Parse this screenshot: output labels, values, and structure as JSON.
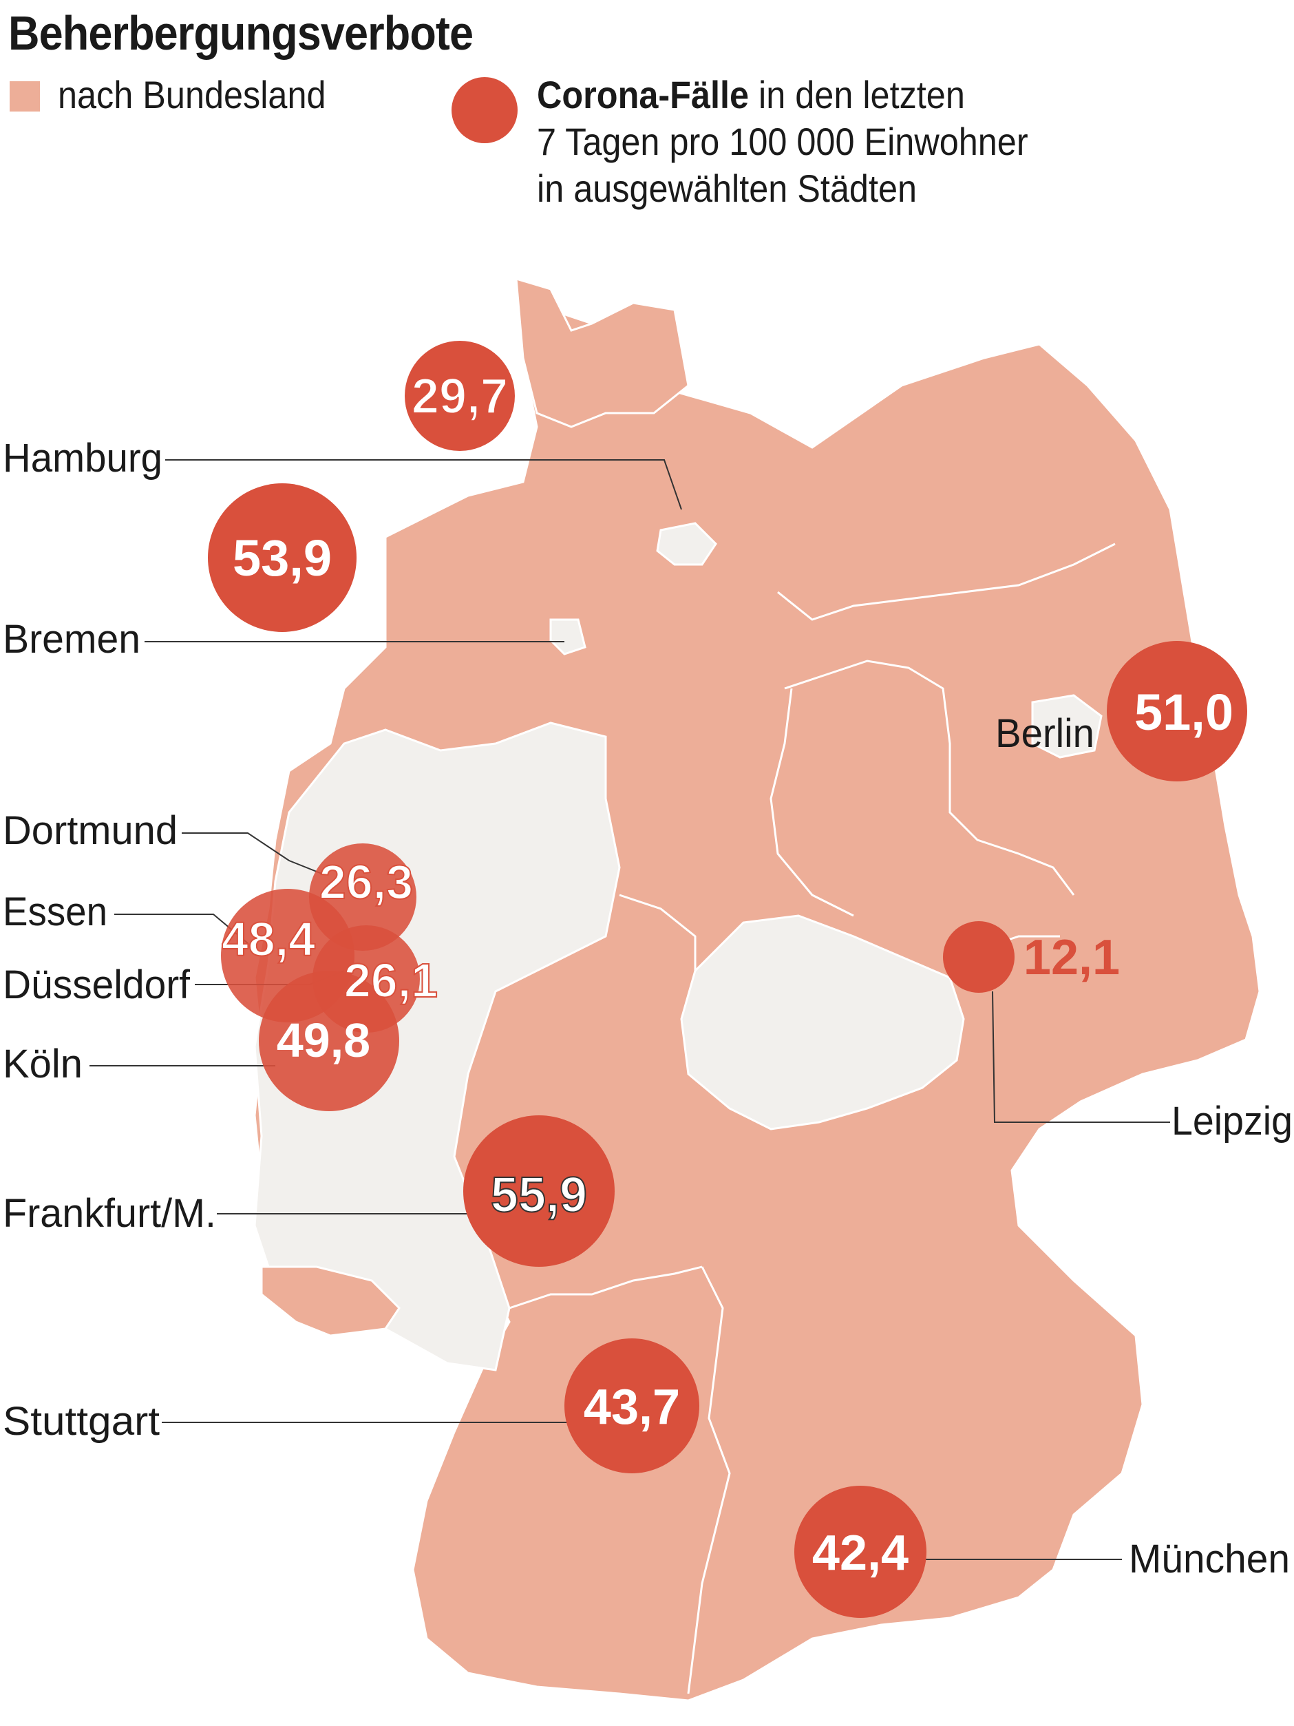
{
  "title": "Beherbergungsverbote",
  "legend": {
    "states_label": "nach Bundesland",
    "cases_bold": "Corona-Fälle",
    "cases_rest_line1": " in den letzten",
    "cases_line2": "7 Tagen pro 100 000 Einwohner",
    "cases_line3": "in ausgewählten Städten"
  },
  "colors": {
    "restricted_state": "#edae98",
    "unrestricted_state": "#f2f0ed",
    "circle": "#d9503c",
    "circle_text": "#ffffff"
  },
  "cities": [
    {
      "name": "Hamburg",
      "label": "Hamburg",
      "value": "29,7"
    },
    {
      "name": "Bremen",
      "label": "Bremen",
      "value": "53,9"
    },
    {
      "name": "Berlin",
      "label": "Berlin",
      "value": "51,0"
    },
    {
      "name": "Dortmund",
      "label": "Dortmund",
      "value": "26,3"
    },
    {
      "name": "Essen",
      "label": "Essen",
      "value": "48,4"
    },
    {
      "name": "Duesseldorf",
      "label": "Düsseldorf",
      "value": "26,1"
    },
    {
      "name": "Koeln",
      "label": "Köln",
      "value": "49,8"
    },
    {
      "name": "Leipzig",
      "label": "Leipzig",
      "value": "12,1"
    },
    {
      "name": "Frankfurt",
      "label": "Frankfurt/M.",
      "value": "55,9"
    },
    {
      "name": "Stuttgart",
      "label": "Stuttgart",
      "value": "43,7"
    },
    {
      "name": "Muenchen",
      "label": "München",
      "value": "42,4"
    }
  ]
}
